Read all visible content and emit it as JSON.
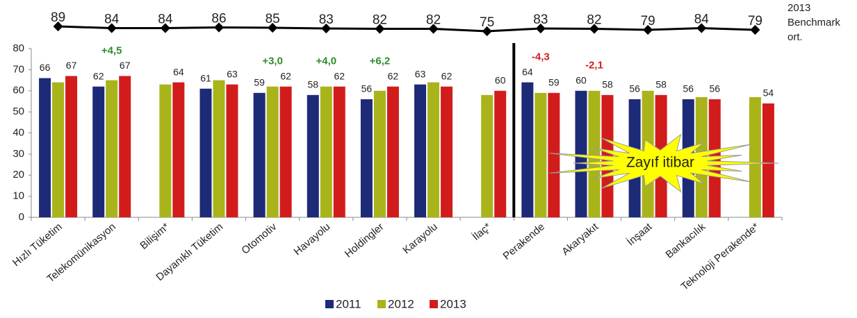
{
  "chart_data": {
    "type": "bar",
    "categories": [
      "Hızlı Tüketim",
      "Telekomünikasyon",
      "Bilişim*",
      "Dayanıklı Tüketim",
      "Otomotiv",
      "Havayolu",
      "Holdingler",
      "Karayolu",
      "İlaç*",
      "Perakende",
      "Akaryakıt",
      "İnşaat",
      "Bankacılık",
      "Teknoloji Perakende*"
    ],
    "series": [
      {
        "name": "2011",
        "color": "#1c2a78",
        "show_labels": true,
        "values": [
          66,
          62,
          null,
          61,
          59,
          58,
          56,
          63,
          null,
          64,
          60,
          56,
          56,
          null
        ]
      },
      {
        "name": "2012",
        "color": "#a8b41a",
        "show_labels": false,
        "values": [
          64,
          65,
          63,
          65,
          62,
          62,
          60,
          64,
          58,
          59,
          60,
          60,
          57,
          57
        ]
      },
      {
        "name": "2013",
        "color": "#d21c1c",
        "show_labels": true,
        "values": [
          67,
          67,
          64,
          63,
          62,
          62,
          62,
          62,
          60,
          59,
          58,
          58,
          56,
          54
        ]
      }
    ],
    "benchmark": {
      "name": "2013 Benchmark ort.",
      "values": [
        89,
        84,
        84,
        86,
        85,
        83,
        82,
        82,
        75,
        83,
        82,
        79,
        84,
        79
      ]
    },
    "annotations": [
      {
        "category": "Telekomünikasyon",
        "text": "+4,5",
        "color": "#2e8b2e"
      },
      {
        "category": "Otomotiv",
        "text": "+3,0",
        "color": "#2e8b2e"
      },
      {
        "category": "Havayolu",
        "text": "+4,0",
        "color": "#2e8b2e"
      },
      {
        "category": "Holdingler",
        "text": "+6,2",
        "color": "#2e8b2e"
      },
      {
        "category": "Perakende",
        "text": "-4,3",
        "color": "#d21c1c"
      },
      {
        "category": "Akaryakıt",
        "text": "-2,1",
        "color": "#d21c1c"
      }
    ],
    "callout": "Zayıf itibar",
    "ylim": [
      0,
      80
    ],
    "yticks": [
      0,
      10,
      20,
      30,
      40,
      50,
      60,
      70,
      80
    ],
    "grid": false
  }
}
